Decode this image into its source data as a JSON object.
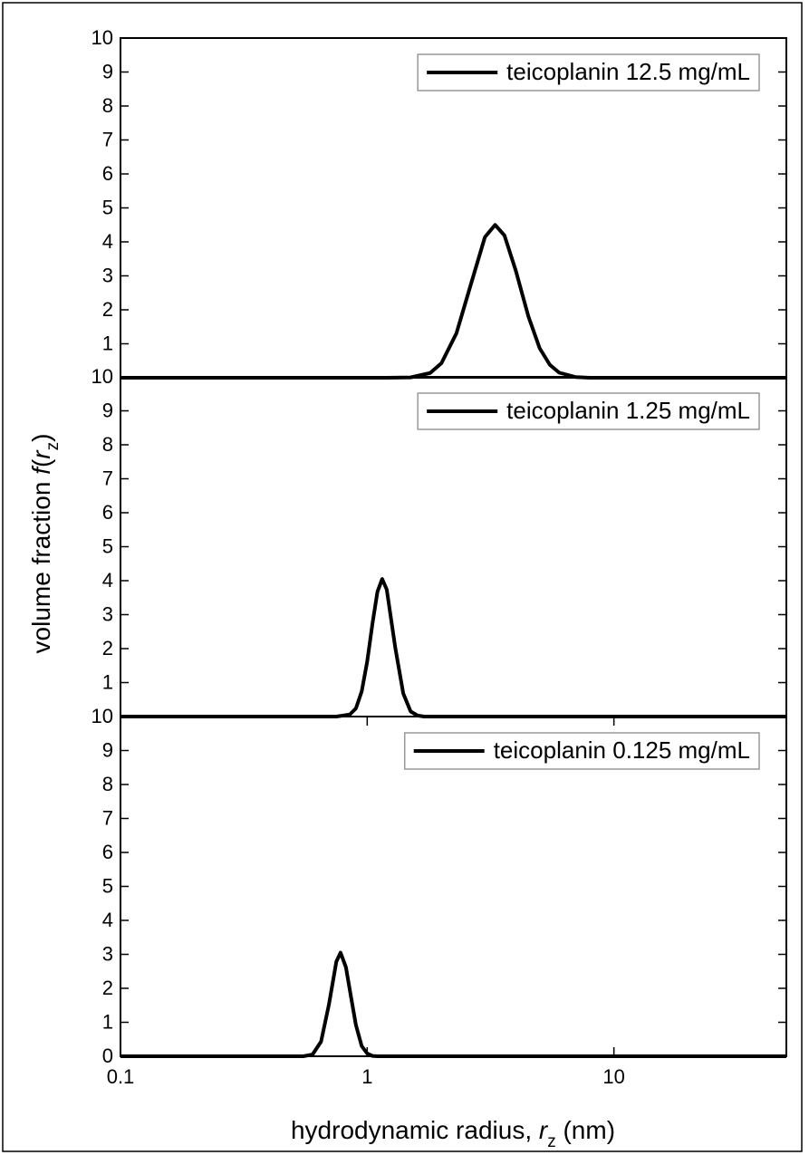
{
  "figure": {
    "ylabel": [
      "volume fraction ",
      "f",
      "(",
      "r",
      "z",
      ")"
    ],
    "xlabel": [
      "hydrodynamic radius, ",
      "r",
      "z",
      " (nm)"
    ]
  },
  "chart_data": [
    {
      "type": "line",
      "xscale": "log",
      "legend": "upper right",
      "xlim": [
        0.1,
        50
      ],
      "ylim": [
        0,
        10
      ],
      "yticks": [
        1,
        2,
        3,
        4,
        5,
        6,
        7,
        8,
        9,
        10
      ],
      "x": [
        0.1,
        1.2,
        1.5,
        1.8,
        2.0,
        2.3,
        2.6,
        3.0,
        3.3,
        3.6,
        4.0,
        4.5,
        5.0,
        5.5,
        6.0,
        7.0,
        8.0,
        50
      ],
      "series": [
        {
          "name": "teicoplanin 12.5 mg/mL",
          "color": "#000000",
          "values": [
            0,
            0,
            0.01,
            0.14,
            0.43,
            1.31,
            2.62,
            4.14,
            4.5,
            4.19,
            3.16,
            1.81,
            0.87,
            0.38,
            0.15,
            0.02,
            0,
            0
          ]
        }
      ]
    },
    {
      "type": "line",
      "xscale": "log",
      "legend": "upper right",
      "xlim": [
        0.1,
        50
      ],
      "ylim": [
        0,
        10
      ],
      "yticks": [
        1,
        2,
        3,
        4,
        5,
        6,
        7,
        8,
        9,
        10
      ],
      "x": [
        0.1,
        0.75,
        0.85,
        0.9,
        0.95,
        1.0,
        1.05,
        1.1,
        1.15,
        1.2,
        1.3,
        1.4,
        1.5,
        1.6,
        1.7,
        50
      ],
      "series": [
        {
          "name": "teicoplanin 1.25 mg/mL",
          "color": "#000000",
          "values": [
            0,
            0,
            0.06,
            0.24,
            0.74,
            1.62,
            2.73,
            3.67,
            4.05,
            3.74,
            2.02,
            0.68,
            0.15,
            0.03,
            0,
            0
          ]
        }
      ]
    },
    {
      "type": "line",
      "xscale": "log",
      "legend": "upper right",
      "xlim": [
        0.1,
        50
      ],
      "ylim": [
        0,
        10
      ],
      "yticks": [
        0,
        1,
        2,
        3,
        4,
        5,
        6,
        7,
        8,
        9,
        10
      ],
      "xticks": [
        0.1,
        1,
        10
      ],
      "x": [
        0.1,
        0.55,
        0.6,
        0.65,
        0.7,
        0.75,
        0.78,
        0.82,
        0.86,
        0.9,
        0.95,
        1.0,
        1.05,
        1.1,
        50
      ],
      "series": [
        {
          "name": "teicoplanin 0.125 mg/mL",
          "color": "#000000",
          "values": [
            0,
            0,
            0.05,
            0.43,
            1.53,
            2.79,
            3.05,
            2.62,
            1.74,
            0.92,
            0.3,
            0.08,
            0.01,
            0,
            0
          ]
        }
      ]
    }
  ]
}
